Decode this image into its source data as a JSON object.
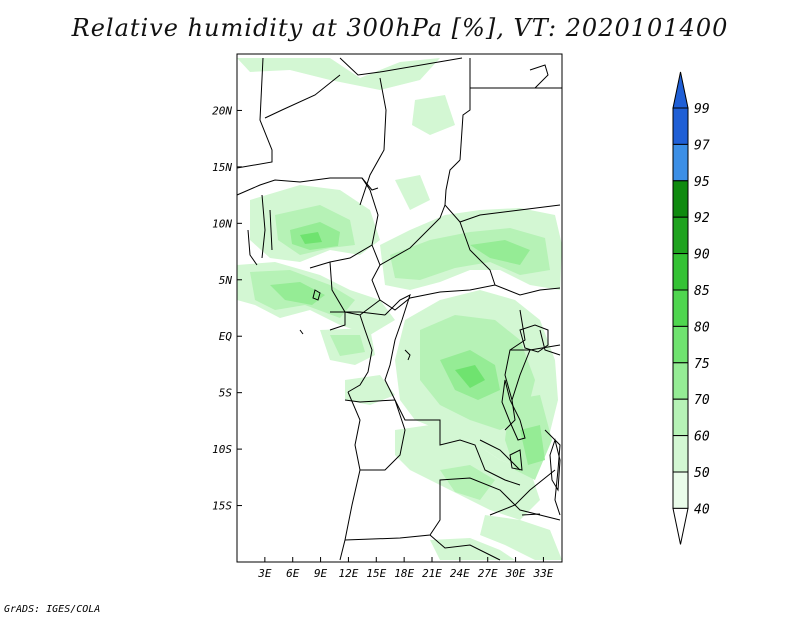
{
  "title": "Relative humidity at 300hPa [%], VT: 2020101400",
  "credit": "GrADS: IGES/COLA",
  "map": {
    "lon_range": [
      0,
      35
    ],
    "lat_range": [
      -20,
      25
    ],
    "x_ticks": [
      "3E",
      "6E",
      "9E",
      "12E",
      "15E",
      "18E",
      "21E",
      "24E",
      "27E",
      "30E",
      "33E"
    ],
    "x_tick_values": [
      3,
      6,
      9,
      12,
      15,
      18,
      21,
      24,
      27,
      30,
      33
    ],
    "y_ticks": [
      "20N",
      "15N",
      "10N",
      "5N",
      "EQ",
      "5S",
      "10S",
      "15S"
    ],
    "y_tick_values": [
      20,
      15,
      10,
      5,
      0,
      -5,
      -10,
      -15
    ]
  },
  "colorbar": {
    "levels": [
      "99",
      "97",
      "95",
      "92",
      "90",
      "85",
      "80",
      "75",
      "70",
      "60",
      "50",
      "40"
    ],
    "colors": {
      "above_97": "#1f5fd6",
      "95_97": "#3c8fe6",
      "92_95": "#0f8a0f",
      "90_92": "#1fa31f",
      "85_90": "#34c234",
      "80_85": "#4fd64f",
      "75_80": "#6fe36f",
      "70_75": "#95ec95",
      "60_70": "#b6f2b6",
      "50_60": "#d3f7d3",
      "40_50": "#eafcea",
      "below_40": "#ffffff"
    }
  }
}
